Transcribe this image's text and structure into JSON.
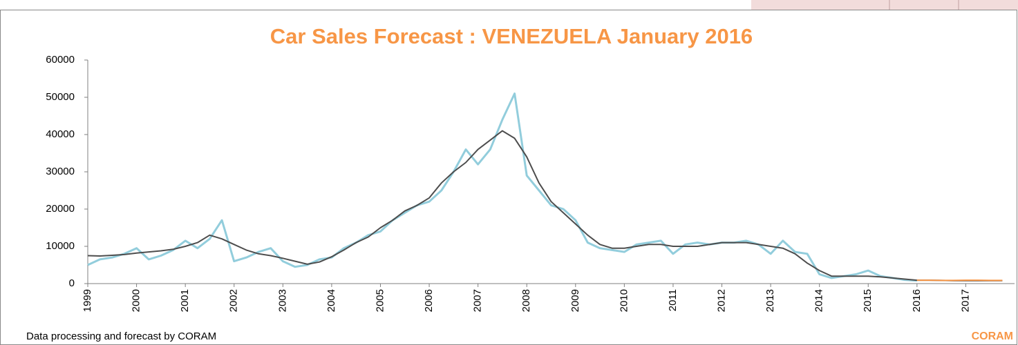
{
  "chart_data": {
    "type": "line",
    "title": "Car Sales Forecast : VENEZUELA January 2016",
    "footer": "Data processing and forecast by CORAM",
    "logo": "CORAM",
    "x": [
      1999,
      1999.25,
      1999.5,
      1999.75,
      2000,
      2000.25,
      2000.5,
      2000.75,
      2001,
      2001.25,
      2001.5,
      2001.75,
      2002,
      2002.25,
      2002.5,
      2002.75,
      2003,
      2003.25,
      2003.5,
      2003.75,
      2004,
      2004.25,
      2004.5,
      2004.75,
      2005,
      2005.25,
      2005.5,
      2005.75,
      2006,
      2006.25,
      2006.5,
      2006.75,
      2007,
      2007.25,
      2007.5,
      2007.75,
      2008,
      2008.25,
      2008.5,
      2008.75,
      2009,
      2009.25,
      2009.5,
      2009.75,
      2010,
      2010.25,
      2010.5,
      2010.75,
      2011,
      2011.25,
      2011.5,
      2011.75,
      2012,
      2012.25,
      2012.5,
      2012.75,
      2013,
      2013.25,
      2013.5,
      2013.75,
      2014,
      2014.25,
      2014.5,
      2014.75,
      2015,
      2015.25,
      2015.5,
      2015.75,
      2016,
      2016.25,
      2016.5,
      2016.75,
      2017,
      2017.25,
      2017.5,
      2017.75
    ],
    "series": [
      {
        "color": "#92cddc",
        "width": 3,
        "values": [
          5000,
          6500,
          7000,
          8000,
          9500,
          6500,
          7500,
          9000,
          11500,
          9500,
          12000,
          17000,
          6000,
          7000,
          8500,
          9500,
          6000,
          4500,
          5000,
          6500,
          7000,
          9500,
          11000,
          13000,
          14000,
          17000,
          19000,
          21000,
          22000,
          25000,
          30000,
          36000,
          32000,
          36000,
          44000,
          51000,
          29000,
          25000,
          21000,
          20000,
          17000,
          11000,
          9500,
          9000,
          8500,
          10500,
          11000,
          11500,
          8000,
          10500,
          11000,
          10500,
          11000,
          11000,
          11500,
          10500,
          8000,
          11500,
          8500,
          8000,
          2500,
          1500,
          2000,
          2500,
          3500,
          2000,
          1500,
          1000,
          800,
          null,
          null,
          null,
          null,
          null,
          null,
          null
        ]
      },
      {
        "color": "#4d4d4d",
        "width": 2,
        "values": [
          7500,
          7400,
          7600,
          7800,
          8200,
          8500,
          8800,
          9200,
          10000,
          11000,
          13000,
          12000,
          10500,
          9000,
          8000,
          7500,
          6800,
          6000,
          5200,
          5800,
          7200,
          9000,
          11000,
          12500,
          15000,
          17000,
          19500,
          21000,
          23000,
          27000,
          30000,
          32500,
          36000,
          38500,
          41000,
          39000,
          34000,
          27000,
          22000,
          19000,
          16000,
          13000,
          10500,
          9500,
          9500,
          10000,
          10500,
          10500,
          10000,
          10000,
          10000,
          10500,
          11000,
          11000,
          11000,
          10500,
          10000,
          9500,
          8000,
          5500,
          3500,
          2000,
          2000,
          2000,
          2000,
          1800,
          1500,
          1200,
          900,
          900,
          850,
          800,
          800,
          800,
          800,
          800
        ]
      },
      {
        "color": "#f79646",
        "width": 2,
        "values": [
          null,
          null,
          null,
          null,
          null,
          null,
          null,
          null,
          null,
          null,
          null,
          null,
          null,
          null,
          null,
          null,
          null,
          null,
          null,
          null,
          null,
          null,
          null,
          null,
          null,
          null,
          null,
          null,
          null,
          null,
          null,
          null,
          null,
          null,
          null,
          null,
          null,
          null,
          null,
          null,
          null,
          null,
          null,
          null,
          null,
          null,
          null,
          null,
          null,
          null,
          null,
          null,
          null,
          null,
          null,
          null,
          null,
          null,
          null,
          null,
          null,
          null,
          null,
          null,
          null,
          null,
          null,
          null,
          900,
          900,
          850,
          850,
          900,
          900,
          850,
          850
        ]
      }
    ],
    "xlim": [
      1999,
      2018
    ],
    "xticks": [
      1999,
      2000,
      2001,
      2002,
      2003,
      2004,
      2005,
      2006,
      2007,
      2008,
      2009,
      2010,
      2011,
      2012,
      2013,
      2014,
      2015,
      2016,
      2017
    ],
    "ylim": [
      0,
      60000
    ],
    "yticks": [
      0,
      10000,
      20000,
      30000,
      40000,
      50000,
      60000
    ],
    "title_color": "#f79646"
  }
}
